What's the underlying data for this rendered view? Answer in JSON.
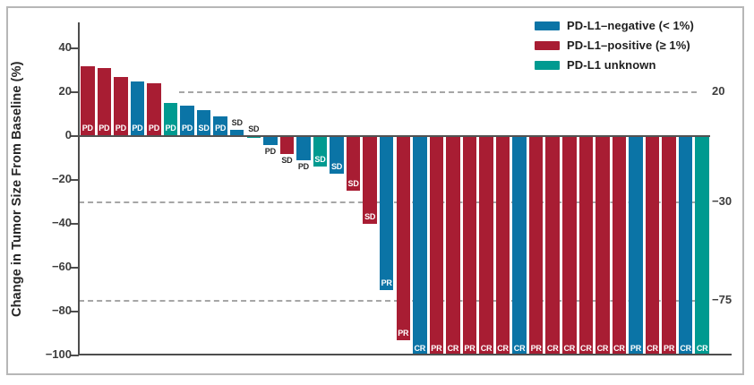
{
  "chart_data": {
    "type": "bar",
    "subtype": "waterfall",
    "title": "",
    "xlabel": "",
    "ylabel": "Change in Tumor Size From Baseline (%)",
    "ylim": [
      -100,
      52
    ],
    "grid": "dashed-threshold-lines",
    "legend_position": "top-right",
    "yticks": [
      {
        "value": 40,
        "label": "40"
      },
      {
        "value": 20,
        "label": "20"
      },
      {
        "value": 0,
        "label": "0"
      },
      {
        "value": -20,
        "label": "−20"
      },
      {
        "value": -40,
        "label": "−40"
      },
      {
        "value": -60,
        "label": "−60"
      },
      {
        "value": -80,
        "label": "−80"
      },
      {
        "value": -100,
        "label": "−100"
      }
    ],
    "thresholds": [
      {
        "value": 20,
        "label": "20"
      },
      {
        "value": -30,
        "label": "−30"
      },
      {
        "value": -75,
        "label": "−75"
      }
    ],
    "groups": [
      {
        "key": "negative",
        "label": "PD-L1–negative (< 1%)",
        "color": "#0b74a6"
      },
      {
        "key": "positive",
        "label": "PD-L1–positive (≥ 1%)",
        "color": "#a81d33"
      },
      {
        "key": "unknown",
        "label": "PD-L1 unknown",
        "color": "#009a90"
      }
    ],
    "bars": [
      {
        "value": 32,
        "group": "positive",
        "response": "PD",
        "label_placement": "inside"
      },
      {
        "value": 31,
        "group": "positive",
        "response": "PD",
        "label_placement": "inside"
      },
      {
        "value": 27,
        "group": "positive",
        "response": "PD",
        "label_placement": "inside"
      },
      {
        "value": 25,
        "group": "negative",
        "response": "PD",
        "label_placement": "inside"
      },
      {
        "value": 24,
        "group": "positive",
        "response": "PD",
        "label_placement": "inside"
      },
      {
        "value": 15,
        "group": "unknown",
        "response": "PD",
        "label_placement": "inside"
      },
      {
        "value": 14,
        "group": "negative",
        "response": "PD",
        "label_placement": "inside"
      },
      {
        "value": 12,
        "group": "negative",
        "response": "SD",
        "label_placement": "inside"
      },
      {
        "value": 9,
        "group": "negative",
        "response": "PD",
        "label_placement": "inside"
      },
      {
        "value": 3,
        "group": "negative",
        "response": "SD",
        "label_placement": "above"
      },
      {
        "value": -1,
        "group": "unknown",
        "response": "SD",
        "label_placement": "above"
      },
      {
        "value": -4,
        "group": "negative",
        "response": "PD",
        "label_placement": "below"
      },
      {
        "value": -8,
        "group": "positive",
        "response": "SD",
        "label_placement": "below"
      },
      {
        "value": -11,
        "group": "negative",
        "response": "PD",
        "label_placement": "below"
      },
      {
        "value": -14,
        "group": "unknown",
        "response": "SD",
        "label_placement": "inside"
      },
      {
        "value": -17,
        "group": "negative",
        "response": "SD",
        "label_placement": "inside"
      },
      {
        "value": -25,
        "group": "positive",
        "response": "SD",
        "label_placement": "inside"
      },
      {
        "value": -40,
        "group": "positive",
        "response": "SD",
        "label_placement": "inside"
      },
      {
        "value": -70,
        "group": "negative",
        "response": "PR",
        "label_placement": "inside"
      },
      {
        "value": -93,
        "group": "positive",
        "response": "PR",
        "label_placement": "inside"
      },
      {
        "value": -100,
        "group": "negative",
        "response": "CR",
        "label_placement": "inside"
      },
      {
        "value": -100,
        "group": "positive",
        "response": "PR",
        "label_placement": "inside"
      },
      {
        "value": -100,
        "group": "positive",
        "response": "CR",
        "label_placement": "inside"
      },
      {
        "value": -100,
        "group": "positive",
        "response": "PR",
        "label_placement": "inside"
      },
      {
        "value": -100,
        "group": "positive",
        "response": "CR",
        "label_placement": "inside"
      },
      {
        "value": -100,
        "group": "positive",
        "response": "CR",
        "label_placement": "inside"
      },
      {
        "value": -100,
        "group": "negative",
        "response": "CR",
        "label_placement": "inside"
      },
      {
        "value": -100,
        "group": "positive",
        "response": "PR",
        "label_placement": "inside"
      },
      {
        "value": -100,
        "group": "positive",
        "response": "CR",
        "label_placement": "inside"
      },
      {
        "value": -100,
        "group": "positive",
        "response": "CR",
        "label_placement": "inside"
      },
      {
        "value": -100,
        "group": "positive",
        "response": "CR",
        "label_placement": "inside"
      },
      {
        "value": -100,
        "group": "positive",
        "response": "CR",
        "label_placement": "inside"
      },
      {
        "value": -100,
        "group": "positive",
        "response": "CR",
        "label_placement": "inside"
      },
      {
        "value": -100,
        "group": "negative",
        "response": "PR",
        "label_placement": "inside"
      },
      {
        "value": -100,
        "group": "positive",
        "response": "CR",
        "label_placement": "inside"
      },
      {
        "value": -100,
        "group": "positive",
        "response": "PR",
        "label_placement": "inside"
      },
      {
        "value": -100,
        "group": "negative",
        "response": "CR",
        "label_placement": "inside"
      },
      {
        "value": -100,
        "group": "unknown",
        "response": "CR",
        "label_placement": "inside"
      }
    ]
  }
}
